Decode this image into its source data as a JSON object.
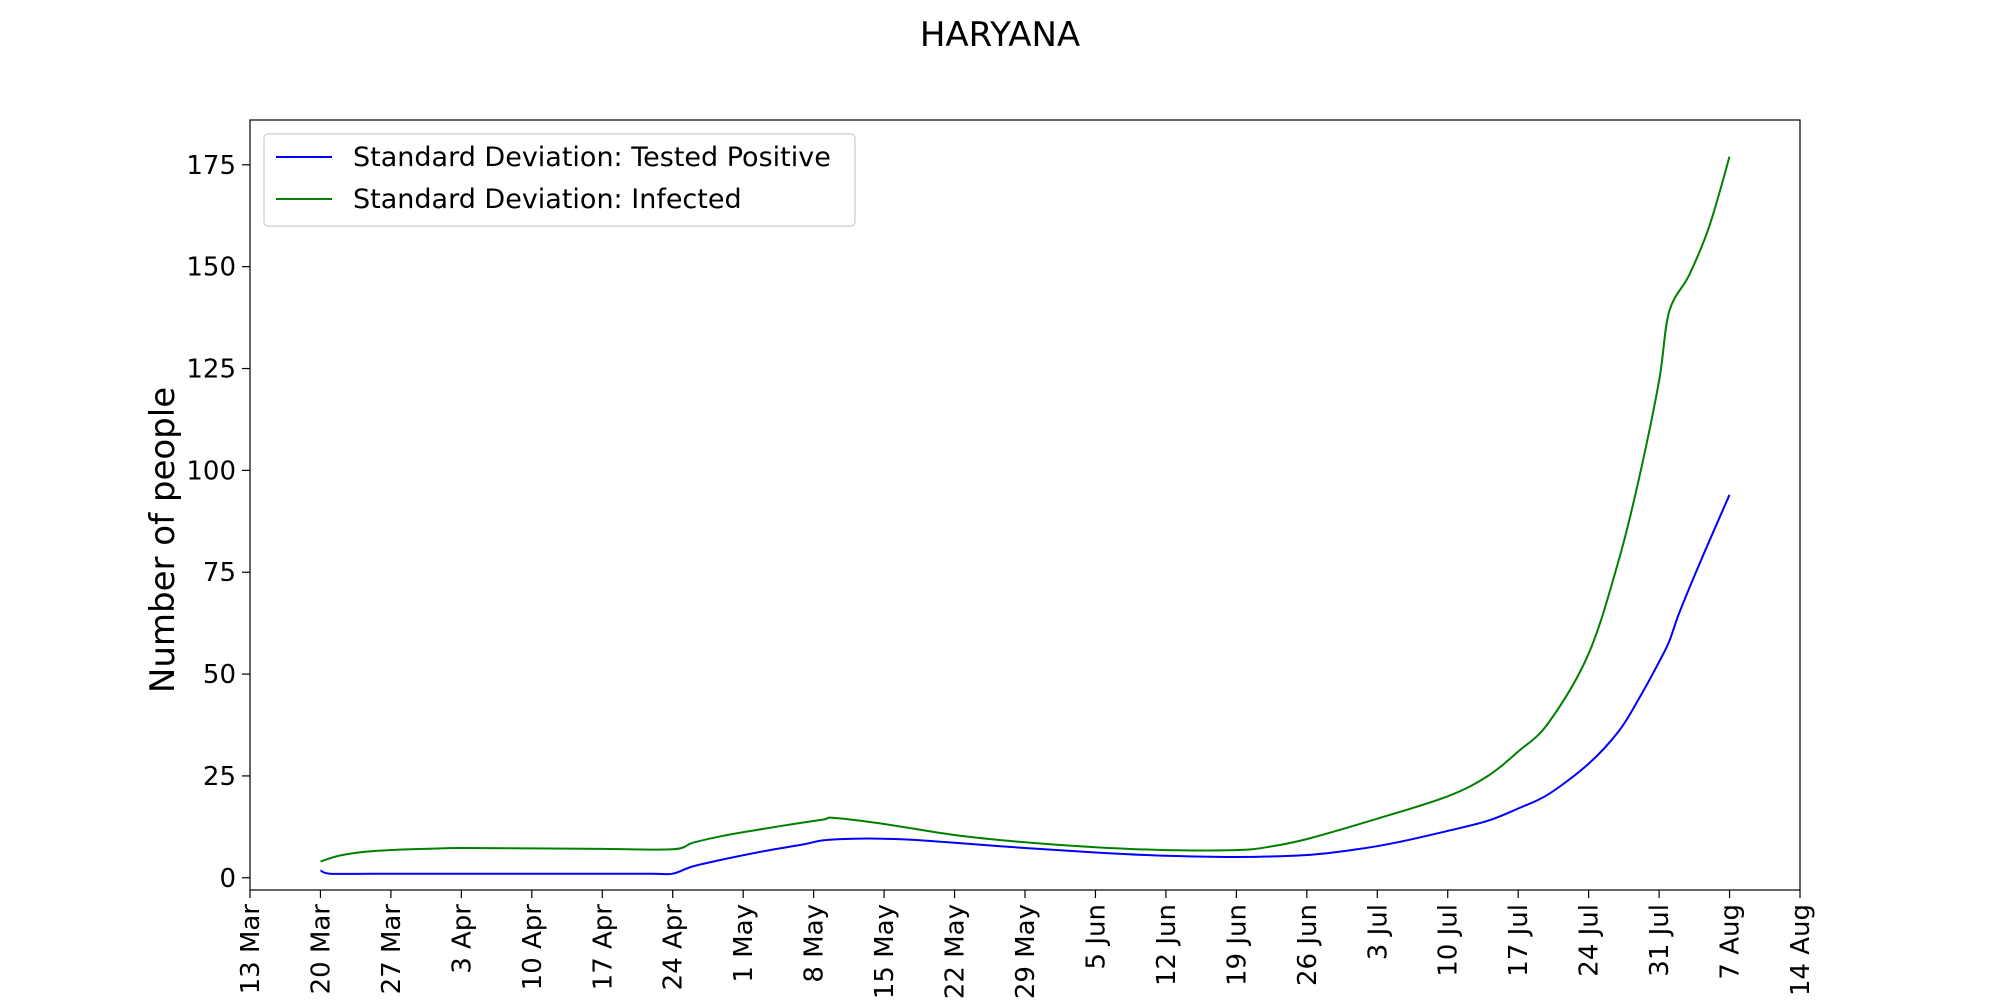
{
  "chart_data": {
    "type": "line",
    "title": "HARYANA",
    "xlabel": "",
    "ylabel": "Number of people",
    "xlim": [
      "2020-03-13",
      "2020-08-14"
    ],
    "ylim": [
      -3,
      186
    ],
    "x_ticks": [
      {
        "date": "2020-03-13",
        "label": "13 Mar"
      },
      {
        "date": "2020-03-20",
        "label": "20 Mar"
      },
      {
        "date": "2020-03-27",
        "label": "27 Mar"
      },
      {
        "date": "2020-04-03",
        "label": "3 Apr"
      },
      {
        "date": "2020-04-10",
        "label": "10 Apr"
      },
      {
        "date": "2020-04-17",
        "label": "17 Apr"
      },
      {
        "date": "2020-04-24",
        "label": "24 Apr"
      },
      {
        "date": "2020-05-01",
        "label": "1 May"
      },
      {
        "date": "2020-05-08",
        "label": "8 May"
      },
      {
        "date": "2020-05-15",
        "label": "15 May"
      },
      {
        "date": "2020-05-22",
        "label": "22 May"
      },
      {
        "date": "2020-05-29",
        "label": "29 May"
      },
      {
        "date": "2020-06-05",
        "label": "5 Jun"
      },
      {
        "date": "2020-06-12",
        "label": "12 Jun"
      },
      {
        "date": "2020-06-19",
        "label": "19 Jun"
      },
      {
        "date": "2020-06-26",
        "label": "26 Jun"
      },
      {
        "date": "2020-07-03",
        "label": "3 Jul"
      },
      {
        "date": "2020-07-10",
        "label": "10 Jul"
      },
      {
        "date": "2020-07-17",
        "label": "17 Jul"
      },
      {
        "date": "2020-07-24",
        "label": "24 Jul"
      },
      {
        "date": "2020-07-31",
        "label": "31 Jul"
      },
      {
        "date": "2020-08-07",
        "label": "7 Aug"
      },
      {
        "date": "2020-08-14",
        "label": "14 Aug"
      }
    ],
    "y_ticks": [
      0,
      25,
      50,
      75,
      100,
      125,
      150,
      175
    ],
    "grid": false,
    "legend": "top-left",
    "series": [
      {
        "name": "Standard Deviation: Tested Positive",
        "color": "#0000ff",
        "points": [
          [
            "2020-03-20",
            1.8
          ],
          [
            "2020-03-21",
            1.0
          ],
          [
            "2020-03-25",
            1.0
          ],
          [
            "2020-04-01",
            1.0
          ],
          [
            "2020-04-08",
            1.0
          ],
          [
            "2020-04-15",
            1.0
          ],
          [
            "2020-04-22",
            1.0
          ],
          [
            "2020-04-24",
            1.0
          ],
          [
            "2020-04-26",
            2.8
          ],
          [
            "2020-04-29",
            4.5
          ],
          [
            "2020-05-03",
            6.5
          ],
          [
            "2020-05-07",
            8.2
          ],
          [
            "2020-05-09",
            9.2
          ],
          [
            "2020-05-12",
            9.6
          ],
          [
            "2020-05-15",
            9.6
          ],
          [
            "2020-05-18",
            9.3
          ],
          [
            "2020-05-22",
            8.6
          ],
          [
            "2020-05-29",
            7.3
          ],
          [
            "2020-06-05",
            6.2
          ],
          [
            "2020-06-12",
            5.4
          ],
          [
            "2020-06-19",
            5.1
          ],
          [
            "2020-06-26",
            5.6
          ],
          [
            "2020-07-01",
            7.0
          ],
          [
            "2020-07-05",
            8.7
          ],
          [
            "2020-07-10",
            11.5
          ],
          [
            "2020-07-14",
            14.0
          ],
          [
            "2020-07-17",
            17.0
          ],
          [
            "2020-07-20",
            20.5
          ],
          [
            "2020-07-24",
            28.0
          ],
          [
            "2020-07-27",
            36.0
          ],
          [
            "2020-07-29",
            44.0
          ],
          [
            "2020-07-31",
            53.0
          ],
          [
            "2020-08-01",
            58.0
          ],
          [
            "2020-08-02",
            65.0
          ],
          [
            "2020-08-04",
            77.0
          ],
          [
            "2020-08-07",
            94.0
          ]
        ]
      },
      {
        "name": "Standard Deviation: Infected",
        "color": "#008000",
        "points": [
          [
            "2020-03-20",
            4.0
          ],
          [
            "2020-03-22",
            5.5
          ],
          [
            "2020-03-25",
            6.5
          ],
          [
            "2020-03-29",
            7.0
          ],
          [
            "2020-04-03",
            7.3
          ],
          [
            "2020-04-10",
            7.2
          ],
          [
            "2020-04-17",
            7.1
          ],
          [
            "2020-04-24",
            7.0
          ],
          [
            "2020-04-26",
            8.6
          ],
          [
            "2020-04-29",
            10.3
          ],
          [
            "2020-05-03",
            12.0
          ],
          [
            "2020-05-06",
            13.2
          ],
          [
            "2020-05-09",
            14.3
          ],
          [
            "2020-05-10",
            14.7
          ],
          [
            "2020-05-15",
            13.2
          ],
          [
            "2020-05-22",
            10.5
          ],
          [
            "2020-05-29",
            8.7
          ],
          [
            "2020-06-05",
            7.5
          ],
          [
            "2020-06-12",
            6.8
          ],
          [
            "2020-06-19",
            6.8
          ],
          [
            "2020-06-22",
            7.5
          ],
          [
            "2020-06-26",
            9.5
          ],
          [
            "2020-07-03",
            14.5
          ],
          [
            "2020-07-10",
            20.0
          ],
          [
            "2020-07-14",
            25.0
          ],
          [
            "2020-07-17",
            31.0
          ],
          [
            "2020-07-20",
            38.0
          ],
          [
            "2020-07-24",
            55.0
          ],
          [
            "2020-07-27",
            78.0
          ],
          [
            "2020-07-29",
            98.0
          ],
          [
            "2020-07-31",
            122.0
          ],
          [
            "2020-08-01",
            139.0
          ],
          [
            "2020-08-03",
            148.0
          ],
          [
            "2020-08-05",
            160.0
          ],
          [
            "2020-08-07",
            177.0
          ]
        ]
      }
    ]
  }
}
